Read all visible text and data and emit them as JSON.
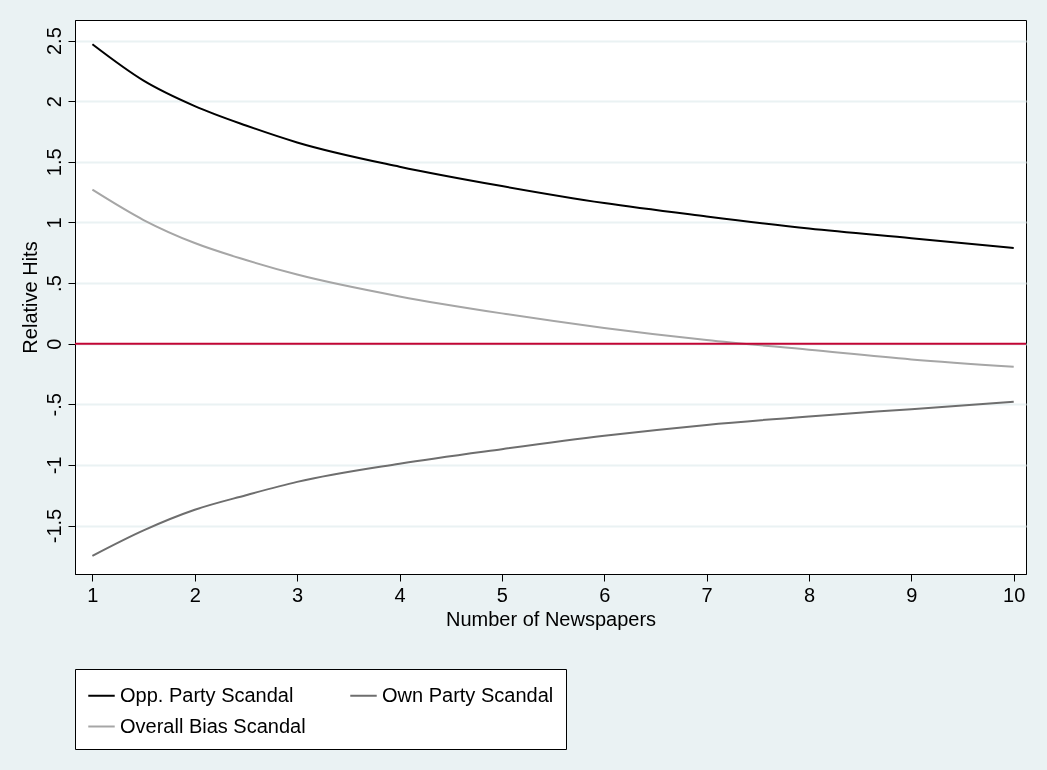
{
  "chart_data": {
    "type": "line",
    "xlabel": "Number of Newspapers",
    "ylabel": "Relative Hits",
    "xlim": [
      0.83,
      10.12
    ],
    "xticks": [
      1,
      2,
      3,
      4,
      5,
      6,
      7,
      8,
      9,
      10
    ],
    "ylim": [
      -1.9,
      2.67
    ],
    "yticks": [
      {
        "value": -1.5,
        "label": "-1.5"
      },
      {
        "value": -1,
        "label": "-1"
      },
      {
        "value": -0.5,
        "label": "-.5"
      },
      {
        "value": 0,
        "label": "0"
      },
      {
        "value": 0.5,
        "label": ".5"
      },
      {
        "value": 1,
        "label": "1"
      },
      {
        "value": 1.5,
        "label": "1.5"
      },
      {
        "value": 2,
        "label": "2"
      },
      {
        "value": 2.5,
        "label": "2.5"
      }
    ],
    "grid": "y",
    "legend": "bottom",
    "marker": "none",
    "line_style": "solid",
    "x": [
      1,
      1.5,
      2,
      2.5,
      3,
      4,
      5,
      6,
      7,
      8,
      9,
      10
    ],
    "series": [
      {
        "name": "Opp. Party Scandal",
        "color": "#000000",
        "values": [
          2.47,
          2.17,
          1.96,
          1.8,
          1.66,
          1.46,
          1.3,
          1.16,
          1.05,
          0.95,
          0.87,
          0.79
        ]
      },
      {
        "name": "Own Party Scandal",
        "color": "#6e6e6e",
        "values": [
          -1.75,
          -1.54,
          -1.37,
          -1.25,
          -1.14,
          -0.99,
          -0.87,
          -0.76,
          -0.67,
          -0.6,
          -0.54,
          -0.48
        ]
      },
      {
        "name": "Overall Bias Scandal",
        "color": "#a6a6a6",
        "values": [
          1.27,
          1.02,
          0.83,
          0.69,
          0.57,
          0.39,
          0.25,
          0.13,
          0.03,
          -0.05,
          -0.13,
          -0.19
        ]
      }
    ],
    "ref_lines": [
      {
        "axis": "y",
        "value": 0,
        "color": "#c10534"
      }
    ]
  }
}
